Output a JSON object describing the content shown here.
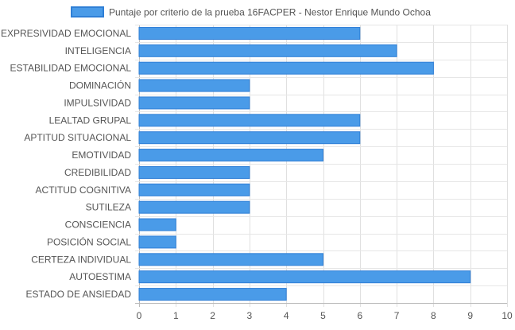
{
  "chart_data": {
    "type": "bar",
    "orientation": "horizontal",
    "categories": [
      "EXPRESIVIDAD EMOCIONAL",
      "INTELIGENCIA",
      "ESTABILIDAD EMOCIONAL",
      "DOMINACIÓN",
      "IMPULSIVIDAD",
      "LEALTAD GRUPAL",
      "APTITUD SITUACIONAL",
      "EMOTIVIDAD",
      "CREDIBILIDAD",
      "ACTITUD COGNITIVA",
      "SUTILEZA",
      "CONSCIENCIA",
      "POSICIÓN SOCIAL",
      "CERTEZA INDIVIDUAL",
      "AUTOESTIMA",
      "ESTADO DE ANSIEDAD"
    ],
    "series": [
      {
        "name": "Puntaje por criterio de la prueba 16FACPER - Nestor Enrique Mundo Ochoa",
        "values": [
          6,
          7,
          8,
          3,
          3,
          6,
          6,
          5,
          3,
          3,
          3,
          1,
          1,
          5,
          9,
          4
        ],
        "color": "#4a9be8",
        "border_color": "#2f7fd6"
      }
    ],
    "xlim": [
      0,
      10
    ],
    "x_ticks": [
      "0",
      "1",
      "2",
      "3",
      "4",
      "5",
      "6",
      "7",
      "8",
      "9",
      "10"
    ],
    "grid": true,
    "legend_position": "top",
    "title": "",
    "xlabel": "",
    "ylabel": ""
  }
}
